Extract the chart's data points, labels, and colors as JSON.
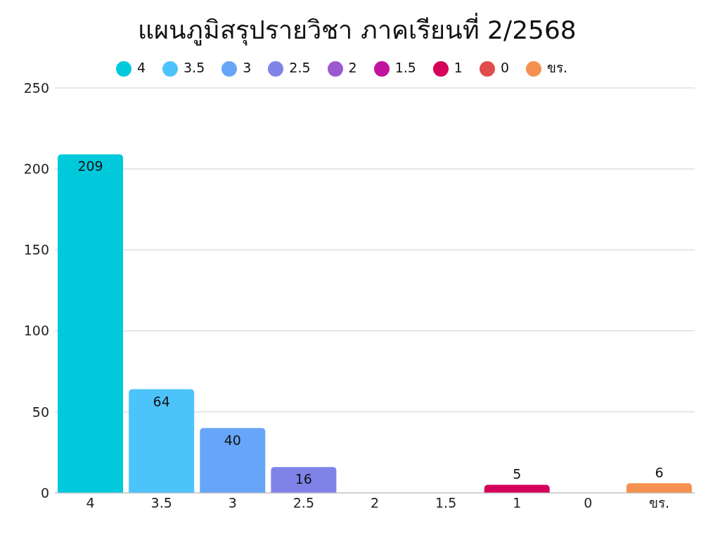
{
  "chart_data": {
    "type": "bar",
    "title": "แผนภูมิสรุปรายวิชา ภาคเรียนที่ 2/2568",
    "categories": [
      "4",
      "3.5",
      "3",
      "2.5",
      "2",
      "1.5",
      "1",
      "0",
      "ขร."
    ],
    "stacked": true,
    "series": [
      {
        "name": "4",
        "color": "#00c9dc",
        "values": [
          209,
          null,
          null,
          null,
          null,
          null,
          null,
          null,
          null
        ],
        "value_labels": [
          "209",
          null,
          null,
          null,
          null,
          null,
          null,
          null,
          null
        ]
      },
      {
        "name": "3.5",
        "color": "#4dc3fc",
        "values": [
          null,
          64,
          null,
          null,
          null,
          null,
          null,
          null,
          null
        ],
        "value_labels": [
          null,
          "64",
          null,
          null,
          null,
          null,
          null,
          null,
          null
        ]
      },
      {
        "name": "3",
        "color": "#67a5f8",
        "values": [
          null,
          null,
          40,
          null,
          null,
          null,
          null,
          null,
          null
        ],
        "value_labels": [
          null,
          null,
          "40",
          null,
          null,
          null,
          null,
          null,
          null
        ]
      },
      {
        "name": "2.5",
        "color": "#7f83e8",
        "values": [
          null,
          null,
          null,
          16,
          null,
          null,
          null,
          null,
          null
        ],
        "value_labels": [
          null,
          null,
          null,
          "16",
          null,
          null,
          null,
          null,
          null
        ]
      },
      {
        "name": "2",
        "color": "#9b59d0",
        "values": [
          null,
          null,
          null,
          null,
          0,
          null,
          null,
          null,
          null
        ]
      },
      {
        "name": "1.5",
        "color": "#c0149f",
        "values": [
          null,
          null,
          null,
          null,
          null,
          0,
          null,
          null,
          null
        ]
      },
      {
        "name": "1",
        "color": "#d5005a",
        "values": [
          null,
          null,
          null,
          null,
          null,
          null,
          5,
          null,
          null
        ],
        "value_labels": [
          null,
          null,
          null,
          null,
          null,
          null,
          "5",
          null,
          null
        ]
      },
      {
        "name": "0",
        "color": "#e04b4b",
        "values": [
          null,
          null,
          null,
          null,
          null,
          null,
          null,
          0,
          null
        ]
      },
      {
        "name": "ขร.",
        "color": "#f59150",
        "values": [
          null,
          null,
          null,
          null,
          null,
          null,
          null,
          null,
          6
        ],
        "value_labels": [
          null,
          null,
          null,
          null,
          null,
          null,
          null,
          null,
          "6"
        ]
      }
    ],
    "ylim": [
      0,
      250
    ],
    "yticks": [
      0,
      50,
      100,
      150,
      200,
      250
    ],
    "grid": "y",
    "legend": "top"
  }
}
